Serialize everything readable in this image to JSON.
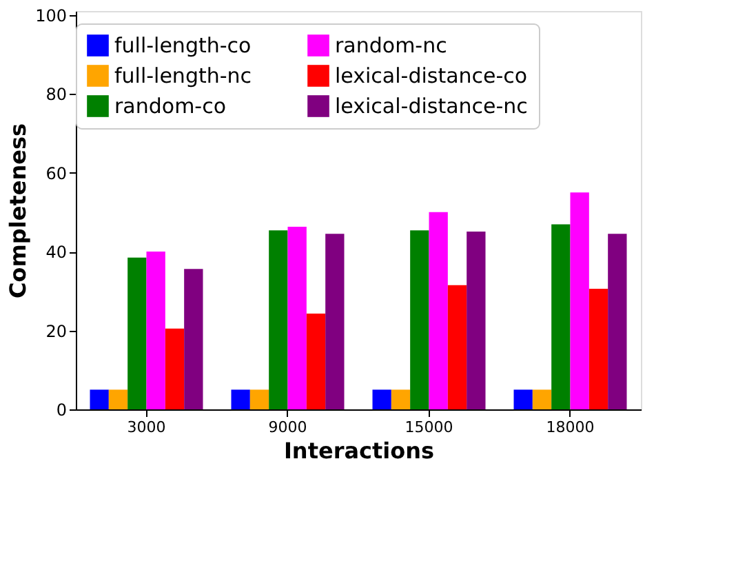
{
  "chart_data": {
    "type": "bar",
    "xlabel": "Interactions",
    "ylabel": "Completeness",
    "categories": [
      "3000",
      "9000",
      "15000",
      "18000"
    ],
    "ylim": [
      0,
      101
    ],
    "yticks": [
      0,
      20,
      40,
      60,
      80,
      100
    ],
    "grid": false,
    "legend": "top",
    "series": [
      {
        "name": "full-length-co",
        "color": "#0000ff",
        "values": [
          5,
          5,
          5,
          5
        ]
      },
      {
        "name": "full-length-nc",
        "color": "#ffa500",
        "values": [
          5,
          5,
          5,
          5
        ]
      },
      {
        "name": "random-co",
        "color": "#008000",
        "values": [
          38.5,
          45.4,
          45.4,
          46.9
        ]
      },
      {
        "name": "random-nc",
        "color": "#ff00ff",
        "values": [
          40,
          46.3,
          50,
          55
        ]
      },
      {
        "name": "lexical-distance-co",
        "color": "#ff0000",
        "values": [
          20.5,
          24.3,
          31.5,
          30.6
        ]
      },
      {
        "name": "lexical-distance-nc",
        "color": "#800080",
        "values": [
          35.6,
          44.5,
          45.1,
          44.5
        ]
      }
    ]
  }
}
